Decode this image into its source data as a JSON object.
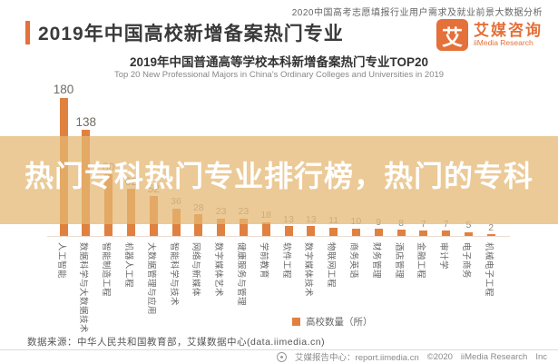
{
  "header": {
    "tagline": "2020中国高考志愿填报行业用户需求及就业前景大数据分析",
    "title": "2019年中国高校新增备案热门专业",
    "logo": {
      "glyph": "艾",
      "name": "艾媒咨询",
      "sub": "iiMedia Research"
    }
  },
  "chart_data": {
    "type": "bar",
    "title": "2019年中国普通高等学校本科新增备案热门专业TOP20",
    "subtitle_en": "Top 20 New Professional Majors in China’s Ordinary Colleges and Universities in 2019",
    "categories": [
      "人工智能",
      "数据科学与大数据技术",
      "智能制造工程",
      "机器人工程",
      "大数据管理与应用",
      "智能科学与技术",
      "网络与新媒体",
      "数字媒体艺术",
      "健康服务与管理",
      "学前教育",
      "软件工程",
      "数字媒体技术",
      "物联网工程",
      "商务英语",
      "财务管理",
      "酒店管理",
      "金融工程",
      "审计学",
      "电子商务",
      "机械电子工程"
    ],
    "values": [
      180,
      138,
      80,
      62,
      52,
      36,
      28,
      23,
      23,
      18,
      13,
      13,
      11,
      10,
      9,
      8,
      7,
      7,
      5,
      2
    ],
    "series_name": "高校数量（所）",
    "xlabel": "",
    "ylabel": "",
    "ylim": [
      0,
      200
    ],
    "grid": false,
    "legend_position": "bottom",
    "bar_color": "#E08140"
  },
  "overlay": {
    "text": "热门专科热门专业排行榜，热门的专科"
  },
  "footer": {
    "source": "数据来源：中华人民共和国教育部，艾媒数据中心(data.iimedia.cn)",
    "report_center": "艾媒报告中心：report.iimedia.cn",
    "copyright": "©2020",
    "brand": "iiMedia Research",
    "suffix": "Inc"
  },
  "colors": {
    "accent": "#E4703A",
    "bar": "#E08140",
    "band": "rgba(228,183,115,0.74)"
  }
}
